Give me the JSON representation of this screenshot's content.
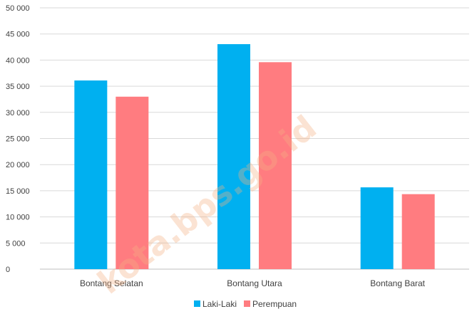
{
  "chart_data": {
    "type": "bar",
    "title": "",
    "xlabel": "",
    "ylabel": "",
    "categories": [
      "Bontang Selatan",
      "Bontang Utara",
      "Bontang Barat"
    ],
    "series": [
      {
        "name": "Laki-Laki",
        "color": "#00b0f0",
        "values": [
          36100,
          43050,
          15650
        ]
      },
      {
        "name": "Perempuan",
        "color": "#ff7c80",
        "values": [
          33000,
          39600,
          14350
        ]
      }
    ],
    "ylim": [
      0,
      50000
    ],
    "yticks": [
      "0",
      "5 000",
      "10 000",
      "15 000",
      "20 000",
      "25 000",
      "30 000",
      "35 000",
      "40 000",
      "45 000",
      "50 000"
    ],
    "grid": true,
    "legend_position": "bottom",
    "watermark": "kota.bps.go.id"
  }
}
